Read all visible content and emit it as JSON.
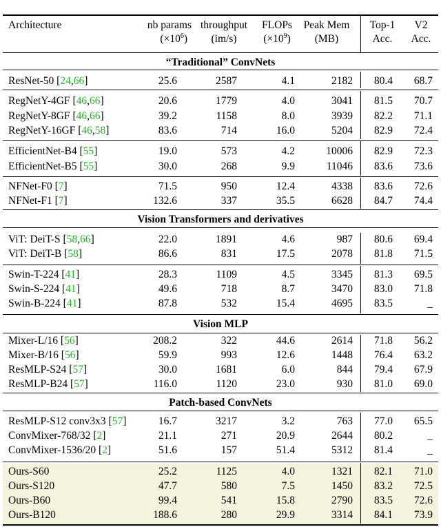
{
  "header": {
    "architecture": "Architecture",
    "params_line1": "nb params",
    "params_line2_pre": "(×10",
    "params_line2_exp": "6",
    "params_line2_post": ")",
    "throughput_line1": "throughput",
    "throughput_line2": "(im/s)",
    "flops_line1": "FLOPs",
    "flops_line2_pre": "(×10",
    "flops_line2_exp": "9",
    "flops_line2_post": ")",
    "mem_line1": "Peak Mem",
    "mem_line2": "(MB)",
    "top1_line1": "Top-1",
    "top1_line2": "Acc.",
    "v2_line1": "V2",
    "v2_line2": "Acc."
  },
  "sections": {
    "traditional": "“Traditional” ConvNets",
    "vit": "Vision Transformers and derivatives",
    "mlp": "Vision MLP",
    "patch": "Patch-based ConvNets"
  },
  "rows": [
    {
      "name": "ResNet-50 ",
      "refs": [
        "24",
        "66"
      ],
      "params": "25.6",
      "throughput": "2587",
      "flops": "4.1",
      "mem": "2182",
      "top1": "80.4",
      "v2": "68.7"
    },
    {
      "name": "RegNetY-4GF ",
      "refs": [
        "46",
        "66"
      ],
      "params": "20.6",
      "throughput": "1779",
      "flops": "4.0",
      "mem": "3041",
      "top1": "81.5",
      "v2": "70.7"
    },
    {
      "name": "RegNetY-8GF ",
      "refs": [
        "46",
        "66"
      ],
      "params": "39.2",
      "throughput": "1158",
      "flops": "8.0",
      "mem": "3939",
      "top1": "82.2",
      "v2": "71.1"
    },
    {
      "name": "RegNetY-16GF ",
      "refs": [
        "46",
        "58"
      ],
      "params": "83.6",
      "throughput": "714",
      "flops": "16.0",
      "mem": "5204",
      "top1": "82.9",
      "v2": "72.4"
    },
    {
      "name": "EfficientNet-B4 ",
      "refs": [
        "55"
      ],
      "params": "19.0",
      "throughput": "573",
      "flops": "4.2",
      "mem": "10006",
      "top1": "82.9",
      "v2": "72.3"
    },
    {
      "name": "EfficientNet-B5 ",
      "refs": [
        "55"
      ],
      "params": "30.0",
      "throughput": "268",
      "flops": "9.9",
      "mem": "11046",
      "top1": "83.6",
      "v2": "73.6"
    },
    {
      "name": "NFNet-F0 ",
      "refs": [
        "7"
      ],
      "params": "71.5",
      "throughput": "950",
      "flops": "12.4",
      "mem": "4338",
      "top1": "83.6",
      "v2": "72.6"
    },
    {
      "name": "NFNet-F1 ",
      "refs": [
        "7"
      ],
      "params": "132.6",
      "throughput": "337",
      "flops": "35.5",
      "mem": "6628",
      "top1": "84.7",
      "v2": "74.4"
    },
    {
      "name": "ViT: DeiT-S ",
      "refs": [
        "58",
        "66"
      ],
      "params": "22.0",
      "throughput": "1891",
      "flops": "4.6",
      "mem": "987",
      "top1": "80.6",
      "v2": "69.4"
    },
    {
      "name": "ViT: DeiT-B ",
      "refs": [
        "58"
      ],
      "params": "86.6",
      "throughput": "831",
      "flops": "17.5",
      "mem": "2078",
      "top1": "81.8",
      "v2": "71.5"
    },
    {
      "name": "Swin-T-224 ",
      "refs": [
        "41"
      ],
      "params": "28.3",
      "throughput": "1109",
      "flops": "4.5",
      "mem": "3345",
      "top1": "81.3",
      "v2": "69.5"
    },
    {
      "name": "Swin-S-224 ",
      "refs": [
        "41"
      ],
      "params": "49.6",
      "throughput": "718",
      "flops": "8.7",
      "mem": "3470",
      "top1": "83.0",
      "v2": "71.8"
    },
    {
      "name": "Swin-B-224 ",
      "refs": [
        "41"
      ],
      "params": "87.8",
      "throughput": "532",
      "flops": "15.4",
      "mem": "4695",
      "top1": "83.5",
      "v2": "_"
    },
    {
      "name": "Mixer-L/16 ",
      "refs": [
        "56"
      ],
      "params": "208.2",
      "throughput": "322",
      "flops": "44.6",
      "mem": "2614",
      "top1": "71.8",
      "v2": "56.2"
    },
    {
      "name": "Mixer-B/16 ",
      "refs": [
        "56"
      ],
      "params": "59.9",
      "throughput": "993",
      "flops": "12.6",
      "mem": "1448",
      "top1": "76.4",
      "v2": "63.2"
    },
    {
      "name": "ResMLP-S24 ",
      "refs": [
        "57"
      ],
      "params": "30.0",
      "throughput": "1681",
      "flops": "6.0",
      "mem": "844",
      "top1": "79.4",
      "v2": "67.9"
    },
    {
      "name": "ResMLP-B24 ",
      "refs": [
        "57"
      ],
      "params": "116.0",
      "throughput": "1120",
      "flops": "23.0",
      "mem": "930",
      "top1": "81.0",
      "v2": "69.0"
    },
    {
      "name": "ResMLP-S12 conv3x3 ",
      "refs": [
        "57"
      ],
      "params": "16.7",
      "throughput": "3217",
      "flops": "3.2",
      "mem": "763",
      "top1": "77.0",
      "v2": "65.5"
    },
    {
      "name": "ConvMixer-768/32 ",
      "refs": [
        "2"
      ],
      "params": "21.1",
      "throughput": "271",
      "flops": "20.9",
      "mem": "2644",
      "top1": "80.2",
      "v2": "_"
    },
    {
      "name": "ConvMixer-1536/20 ",
      "refs": [
        "2"
      ],
      "params": "51.6",
      "throughput": "157",
      "flops": "51.4",
      "mem": "5312",
      "top1": "81.4",
      "v2": "_"
    },
    {
      "name": "Ours-S60",
      "refs": [],
      "params": "25.2",
      "throughput": "1125",
      "flops": "4.0",
      "mem": "1321",
      "top1": "82.1",
      "v2": "71.0"
    },
    {
      "name": "Ours-S120",
      "refs": [],
      "params": "47.7",
      "throughput": "580",
      "flops": "7.5",
      "mem": "1450",
      "top1": "83.2",
      "v2": "72.5"
    },
    {
      "name": "Ours-B60",
      "refs": [],
      "params": "99.4",
      "throughput": "541",
      "flops": "15.8",
      "mem": "2790",
      "top1": "83.5",
      "v2": "72.6"
    },
    {
      "name": "Ours-B120",
      "refs": [],
      "params": "188.6",
      "throughput": "280",
      "flops": "29.9",
      "mem": "3314",
      "top1": "84.1",
      "v2": "73.9"
    }
  ],
  "colors": {
    "ref": "#22b422",
    "highlight": "#f4f3dc"
  }
}
